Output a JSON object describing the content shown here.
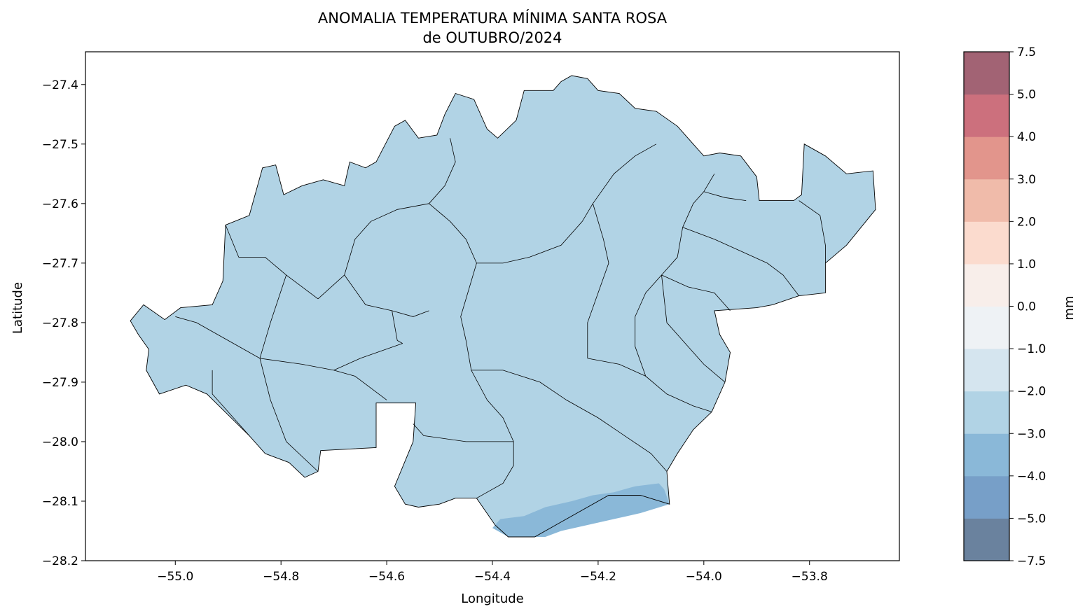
{
  "chart_data": {
    "type": "heatmap",
    "title_line1": "ANOMALIA TEMPERATURA MÍNIMA SANTA ROSA",
    "title_line2": "de OUTUBRO/2024",
    "xlabel": "Longitude",
    "ylabel": "Latitude",
    "xlim": [
      -55.17,
      -53.63
    ],
    "ylim": [
      -28.2,
      -27.345
    ],
    "x_ticks": [
      {
        "value": -55.0,
        "label": "−55.0"
      },
      {
        "value": -54.8,
        "label": "−54.8"
      },
      {
        "value": -54.6,
        "label": "−54.6"
      },
      {
        "value": -54.4,
        "label": "−54.4"
      },
      {
        "value": -54.2,
        "label": "−54.2"
      },
      {
        "value": -54.0,
        "label": "−54.0"
      },
      {
        "value": -53.8,
        "label": "−53.8"
      }
    ],
    "y_ticks": [
      {
        "value": -27.4,
        "label": "−27.4"
      },
      {
        "value": -27.5,
        "label": "−27.5"
      },
      {
        "value": -27.6,
        "label": "−27.6"
      },
      {
        "value": -27.7,
        "label": "−27.7"
      },
      {
        "value": -27.8,
        "label": "−27.8"
      },
      {
        "value": -27.9,
        "label": "−27.9"
      },
      {
        "value": -28.0,
        "label": "−28.0"
      },
      {
        "value": -28.1,
        "label": "−28.1"
      },
      {
        "value": -28.2,
        "label": "−28.2"
      }
    ],
    "colorbar": {
      "label": "mm",
      "levels": [
        -7.5,
        -5.0,
        -4.0,
        -3.0,
        -2.0,
        -1.0,
        0.0,
        1.0,
        2.0,
        3.0,
        4.0,
        5.0,
        7.5
      ],
      "tick_labels": [
        "−7.5",
        "−5.0",
        "−4.0",
        "−3.0",
        "−2.0",
        "−1.0",
        "0.0",
        "1.0",
        "2.0",
        "3.0",
        "4.0",
        "5.0",
        "7.5"
      ],
      "colors": [
        "#6a829e",
        "#779fc8",
        "#8ab8d8",
        "#b1d3e5",
        "#d5e5ef",
        "#eef2f5",
        "#f8eeea",
        "#fbdbce",
        "#f0bbaa",
        "#e2958c",
        "#cc707d",
        "#a26374"
      ]
    },
    "fields": [
      {
        "range": [
          -3.0,
          -2.0
        ],
        "color": "#b1d3e5",
        "region": "Santa Rosa region (most of area)"
      },
      {
        "range": [
          -4.0,
          -3.0
        ],
        "color": "#8ab8d8",
        "region": "southern edge near -54.35 to -54.07, -28.07 to -28.16"
      }
    ],
    "region_outline": [
      [
        -55.085,
        -27.797
      ],
      [
        -55.06,
        -27.77
      ],
      [
        -55.02,
        -27.795
      ],
      [
        -54.99,
        -27.775
      ],
      [
        -54.93,
        -27.77
      ],
      [
        -54.91,
        -27.73
      ],
      [
        -54.905,
        -27.636
      ],
      [
        -54.86,
        -27.62
      ],
      [
        -54.835,
        -27.54
      ],
      [
        -54.81,
        -27.535
      ],
      [
        -54.795,
        -27.585
      ],
      [
        -54.76,
        -27.57
      ],
      [
        -54.72,
        -27.56
      ],
      [
        -54.68,
        -27.57
      ],
      [
        -54.67,
        -27.53
      ],
      [
        -54.64,
        -27.54
      ],
      [
        -54.62,
        -27.53
      ],
      [
        -54.585,
        -27.47
      ],
      [
        -54.565,
        -27.46
      ],
      [
        -54.54,
        -27.49
      ],
      [
        -54.505,
        -27.485
      ],
      [
        -54.49,
        -27.45
      ],
      [
        -54.47,
        -27.415
      ],
      [
        -54.435,
        -27.425
      ],
      [
        -54.41,
        -27.475
      ],
      [
        -54.39,
        -27.49
      ],
      [
        -54.355,
        -27.46
      ],
      [
        -54.34,
        -27.41
      ],
      [
        -54.285,
        -27.41
      ],
      [
        -54.27,
        -27.395
      ],
      [
        -54.25,
        -27.385
      ],
      [
        -54.22,
        -27.39
      ],
      [
        -54.2,
        -27.41
      ],
      [
        -54.16,
        -27.415
      ],
      [
        -54.13,
        -27.44
      ],
      [
        -54.09,
        -27.445
      ],
      [
        -54.05,
        -27.47
      ],
      [
        -54.02,
        -27.5
      ],
      [
        -54.0,
        -27.52
      ],
      [
        -53.97,
        -27.515
      ],
      [
        -53.93,
        -27.52
      ],
      [
        -53.9,
        -27.555
      ],
      [
        -53.895,
        -27.595
      ],
      [
        -53.83,
        -27.595
      ],
      [
        -53.815,
        -27.585
      ],
      [
        -53.81,
        -27.5
      ],
      [
        -53.77,
        -27.52
      ],
      [
        -53.73,
        -27.55
      ],
      [
        -53.68,
        -27.545
      ],
      [
        -53.675,
        -27.61
      ],
      [
        -53.73,
        -27.67
      ],
      [
        -53.77,
        -27.7
      ],
      [
        -53.77,
        -27.75
      ],
      [
        -53.82,
        -27.755
      ],
      [
        -53.87,
        -27.77
      ],
      [
        -53.9,
        -27.775
      ],
      [
        -53.98,
        -27.78
      ],
      [
        -53.97,
        -27.82
      ],
      [
        -53.95,
        -27.85
      ],
      [
        -53.96,
        -27.9
      ],
      [
        -53.985,
        -27.95
      ],
      [
        -54.02,
        -27.98
      ],
      [
        -54.05,
        -28.02
      ],
      [
        -54.07,
        -28.05
      ],
      [
        -54.065,
        -28.105
      ],
      [
        -54.12,
        -28.09
      ],
      [
        -54.18,
        -28.09
      ],
      [
        -54.24,
        -28.12
      ],
      [
        -54.28,
        -28.14
      ],
      [
        -54.32,
        -28.16
      ],
      [
        -54.37,
        -28.16
      ],
      [
        -54.395,
        -28.14
      ],
      [
        -54.43,
        -28.095
      ],
      [
        -54.47,
        -28.095
      ],
      [
        -54.5,
        -28.105
      ],
      [
        -54.54,
        -28.11
      ],
      [
        -54.565,
        -28.105
      ],
      [
        -54.585,
        -28.075
      ],
      [
        -54.55,
        -28.0
      ],
      [
        -54.545,
        -27.935
      ],
      [
        -54.62,
        -27.935
      ],
      [
        -54.62,
        -28.01
      ],
      [
        -54.725,
        -28.015
      ],
      [
        -54.73,
        -28.05
      ],
      [
        -54.755,
        -28.06
      ],
      [
        -54.785,
        -28.035
      ],
      [
        -54.83,
        -28.02
      ],
      [
        -54.86,
        -27.99
      ],
      [
        -54.9,
        -27.955
      ],
      [
        -54.94,
        -27.92
      ],
      [
        -54.98,
        -27.905
      ],
      [
        -55.03,
        -27.92
      ],
      [
        -55.055,
        -27.88
      ],
      [
        -55.05,
        -27.845
      ],
      [
        -55.07,
        -27.82
      ],
      [
        -55.085,
        -27.797
      ]
    ],
    "southern_band": [
      [
        -54.4,
        -28.145
      ],
      [
        -54.385,
        -28.13
      ],
      [
        -54.34,
        -28.125
      ],
      [
        -54.3,
        -28.11
      ],
      [
        -54.25,
        -28.1
      ],
      [
        -54.21,
        -28.09
      ],
      [
        -54.17,
        -28.085
      ],
      [
        -54.13,
        -28.075
      ],
      [
        -54.085,
        -28.07
      ],
      [
        -54.075,
        -28.08
      ],
      [
        -54.065,
        -28.105
      ],
      [
        -54.12,
        -28.12
      ],
      [
        -54.17,
        -28.13
      ],
      [
        -54.22,
        -28.14
      ],
      [
        -54.27,
        -28.15
      ],
      [
        -54.3,
        -28.16
      ],
      [
        -54.37,
        -28.16
      ]
    ],
    "municipal_borders": [
      [
        [
          -54.905,
          -27.636
        ],
        [
          -54.88,
          -27.69
        ],
        [
          -54.83,
          -27.69
        ],
        [
          -54.79,
          -27.72
        ],
        [
          -54.76,
          -27.74
        ],
        [
          -54.73,
          -27.76
        ]
      ],
      [
        [
          -54.79,
          -27.72
        ],
        [
          -54.82,
          -27.8
        ],
        [
          -54.84,
          -27.86
        ],
        [
          -54.82,
          -27.93
        ],
        [
          -54.79,
          -28.0
        ],
        [
          -54.73,
          -28.05
        ]
      ],
      [
        [
          -55.0,
          -27.79
        ],
        [
          -54.96,
          -27.8
        ],
        [
          -54.92,
          -27.82
        ],
        [
          -54.88,
          -27.84
        ],
        [
          -54.84,
          -27.86
        ]
      ],
      [
        [
          -54.93,
          -27.88
        ],
        [
          -54.93,
          -27.92
        ],
        [
          -54.89,
          -27.96
        ],
        [
          -54.86,
          -27.99
        ]
      ],
      [
        [
          -54.84,
          -27.86
        ],
        [
          -54.76,
          -27.87
        ],
        [
          -54.7,
          -27.88
        ],
        [
          -54.66,
          -27.89
        ],
        [
          -54.6,
          -27.93
        ]
      ],
      [
        [
          -54.7,
          -27.88
        ],
        [
          -54.65,
          -27.86
        ],
        [
          -54.57,
          -27.835
        ]
      ],
      [
        [
          -54.73,
          -27.76
        ],
        [
          -54.68,
          -27.72
        ],
        [
          -54.66,
          -27.66
        ],
        [
          -54.63,
          -27.63
        ],
        [
          -54.58,
          -27.61
        ],
        [
          -54.52,
          -27.6
        ]
      ],
      [
        [
          -54.68,
          -27.72
        ],
        [
          -54.64,
          -27.77
        ],
        [
          -54.59,
          -27.78
        ],
        [
          -54.55,
          -27.79
        ],
        [
          -54.52,
          -27.78
        ]
      ],
      [
        [
          -54.59,
          -27.78
        ],
        [
          -54.58,
          -27.83
        ],
        [
          -54.57,
          -27.835
        ]
      ],
      [
        [
          -54.52,
          -27.6
        ],
        [
          -54.49,
          -27.57
        ],
        [
          -54.47,
          -27.53
        ],
        [
          -54.48,
          -27.49
        ]
      ],
      [
        [
          -54.52,
          -27.6
        ],
        [
          -54.48,
          -27.63
        ],
        [
          -54.45,
          -27.66
        ],
        [
          -54.43,
          -27.7
        ]
      ],
      [
        [
          -54.43,
          -27.7
        ],
        [
          -54.45,
          -27.76
        ],
        [
          -54.46,
          -27.79
        ],
        [
          -54.45,
          -27.83
        ],
        [
          -54.44,
          -27.88
        ],
        [
          -54.41,
          -27.93
        ],
        [
          -54.38,
          -27.96
        ],
        [
          -54.36,
          -28.0
        ]
      ],
      [
        [
          -54.36,
          -28.0
        ],
        [
          -54.4,
          -28.0
        ],
        [
          -54.45,
          -28.0
        ],
        [
          -54.53,
          -27.99
        ],
        [
          -54.55,
          -27.97
        ]
      ],
      [
        [
          -54.36,
          -28.0
        ],
        [
          -54.36,
          -28.04
        ],
        [
          -54.38,
          -28.07
        ],
        [
          -54.43,
          -28.095
        ]
      ],
      [
        [
          -54.43,
          -27.7
        ],
        [
          -54.38,
          -27.7
        ],
        [
          -54.33,
          -27.69
        ],
        [
          -54.27,
          -27.67
        ],
        [
          -54.23,
          -27.63
        ],
        [
          -54.21,
          -27.6
        ]
      ],
      [
        [
          -54.21,
          -27.6
        ],
        [
          -54.17,
          -27.55
        ],
        [
          -54.13,
          -27.52
        ],
        [
          -54.09,
          -27.5
        ]
      ],
      [
        [
          -54.21,
          -27.6
        ],
        [
          -54.19,
          -27.66
        ],
        [
          -54.18,
          -27.7
        ],
        [
          -54.2,
          -27.75
        ],
        [
          -54.22,
          -27.8
        ],
        [
          -54.22,
          -27.86
        ]
      ],
      [
        [
          -54.44,
          -27.88
        ],
        [
          -54.38,
          -27.88
        ],
        [
          -54.31,
          -27.9
        ],
        [
          -54.26,
          -27.93
        ],
        [
          -54.2,
          -27.96
        ],
        [
          -54.15,
          -27.99
        ],
        [
          -54.1,
          -28.02
        ],
        [
          -54.07,
          -28.05
        ]
      ],
      [
        [
          -54.22,
          -27.86
        ],
        [
          -54.16,
          -27.87
        ],
        [
          -54.11,
          -27.89
        ],
        [
          -54.07,
          -27.92
        ],
        [
          -54.02,
          -27.94
        ],
        [
          -53.985,
          -27.95
        ]
      ],
      [
        [
          -54.11,
          -27.89
        ],
        [
          -54.13,
          -27.84
        ],
        [
          -54.13,
          -27.79
        ],
        [
          -54.11,
          -27.75
        ],
        [
          -54.08,
          -27.72
        ]
      ],
      [
        [
          -54.08,
          -27.72
        ],
        [
          -54.05,
          -27.69
        ],
        [
          -54.04,
          -27.64
        ],
        [
          -54.02,
          -27.6
        ],
        [
          -54.0,
          -27.58
        ],
        [
          -53.98,
          -27.55
        ]
      ],
      [
        [
          -54.08,
          -27.72
        ],
        [
          -54.03,
          -27.74
        ],
        [
          -53.98,
          -27.75
        ],
        [
          -53.95,
          -27.78
        ]
      ],
      [
        [
          -54.0,
          -27.58
        ],
        [
          -53.96,
          -27.59
        ],
        [
          -53.92,
          -27.595
        ]
      ],
      [
        [
          -54.04,
          -27.64
        ],
        [
          -53.98,
          -27.66
        ],
        [
          -53.93,
          -27.68
        ],
        [
          -53.88,
          -27.7
        ],
        [
          -53.85,
          -27.72
        ],
        [
          -53.82,
          -27.755
        ]
      ],
      [
        [
          -53.82,
          -27.595
        ],
        [
          -53.78,
          -27.62
        ],
        [
          -53.77,
          -27.67
        ],
        [
          -53.77,
          -27.7
        ]
      ],
      [
        [
          -53.96,
          -27.9
        ],
        [
          -54.0,
          -27.87
        ],
        [
          -54.04,
          -27.83
        ],
        [
          -54.07,
          -27.8
        ],
        [
          -54.08,
          -27.72
        ]
      ]
    ]
  }
}
